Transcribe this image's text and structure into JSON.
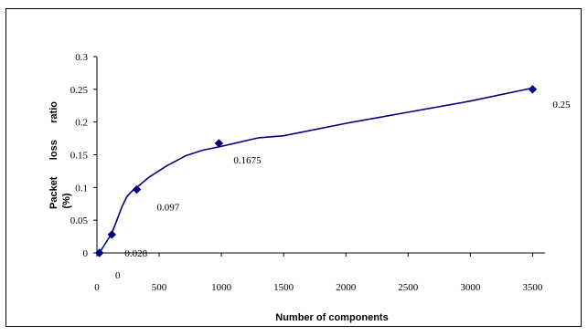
{
  "chart_data": {
    "type": "line",
    "title": "",
    "xlabel": "Number of components",
    "ylabel": "Packet loss ratio (%)",
    "ylabel_lines": [
      "Packet      loss      ratio",
      "(%)"
    ],
    "xlim": [
      0,
      3600
    ],
    "ylim": [
      0,
      0.3
    ],
    "xticks": [
      0,
      500,
      1000,
      1500,
      2000,
      2500,
      3000,
      3500
    ],
    "xtick_labels": [
      "0",
      "500",
      "1000",
      "1500",
      "2000",
      "2500",
      "3000",
      "3500"
    ],
    "yticks": [
      0,
      0.05,
      0.1,
      0.15,
      0.2,
      0.25,
      0.3
    ],
    "ytick_labels": [
      "0",
      "0.05",
      "0.1",
      "0.15",
      "0.2",
      "0.25",
      "0.3"
    ],
    "grid": false,
    "legend": "none",
    "series": [
      {
        "color": "#000080",
        "line_points": [
          {
            "x": 20,
            "y": 0
          },
          {
            "x": 80,
            "y": 0.018
          },
          {
            "x": 120,
            "y": 0.03
          },
          {
            "x": 160,
            "y": 0.05
          },
          {
            "x": 200,
            "y": 0.07
          },
          {
            "x": 240,
            "y": 0.086
          },
          {
            "x": 280,
            "y": 0.094
          },
          {
            "x": 320,
            "y": 0.1
          },
          {
            "x": 420,
            "y": 0.116
          },
          {
            "x": 560,
            "y": 0.133
          },
          {
            "x": 720,
            "y": 0.149
          },
          {
            "x": 850,
            "y": 0.157
          },
          {
            "x": 980,
            "y": 0.162
          },
          {
            "x": 1300,
            "y": 0.176
          },
          {
            "x": 1500,
            "y": 0.179
          },
          {
            "x": 2000,
            "y": 0.198
          },
          {
            "x": 2500,
            "y": 0.215
          },
          {
            "x": 3000,
            "y": 0.232
          },
          {
            "x": 3500,
            "y": 0.252
          }
        ],
        "markers": [
          {
            "x": 20,
            "y": 0,
            "label": "0"
          },
          {
            "x": 120,
            "y": 0.028,
            "label": "0.028"
          },
          {
            "x": 320,
            "y": 0.097,
            "label": "0.097"
          },
          {
            "x": 980,
            "y": 0.1675,
            "label": "0.1675"
          },
          {
            "x": 3500,
            "y": 0.25,
            "label": "0.25"
          }
        ]
      }
    ]
  }
}
